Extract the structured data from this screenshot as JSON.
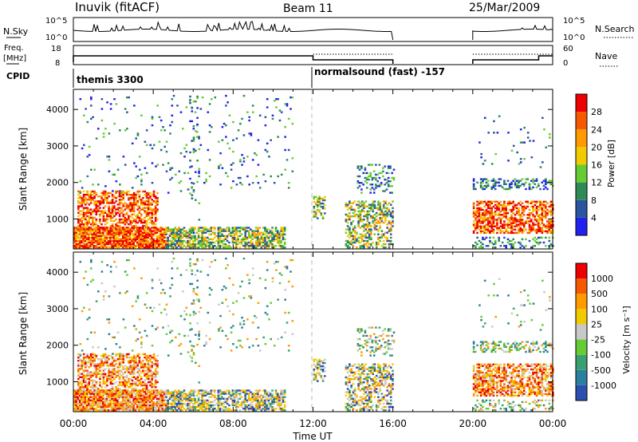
{
  "header": {
    "station": "Inuvik (fitACF)",
    "beam": "Beam 11",
    "date": "25/Mar/2009"
  },
  "panels": {
    "nsky": {
      "label": "N.Sky",
      "right_label": "N.Search",
      "left_ticks": [
        "10^5",
        "10^0"
      ],
      "right_ticks": [
        "10^5",
        "10^0"
      ]
    },
    "freq": {
      "label_line1": "Freq.",
      "label_line2": "[MHz]",
      "right_label": "Nave",
      "left_ticks": [
        "18",
        "8"
      ],
      "right_ticks": [
        "60",
        "0"
      ]
    },
    "cpid": {
      "label": "CPID",
      "segments": [
        "themis 3300",
        "normalsound (fast) -157"
      ]
    }
  },
  "chart_data": [
    {
      "type": "heatmap",
      "name": "power",
      "ylabel": "Slant Range [km]",
      "xlabel": "Time UT",
      "xlim": [
        "00:00",
        "24:00"
      ],
      "ylim": [
        180,
        4550
      ],
      "x_ticks": [
        "00:00",
        "04:00",
        "08:00",
        "12:00",
        "16:00",
        "20:00",
        "00:00"
      ],
      "y_ticks": [
        1000,
        2000,
        3000,
        4000
      ],
      "colorbar": {
        "label": "Power [dB]",
        "ticks": [
          "4",
          "8",
          "12",
          "16",
          "20",
          "24",
          "28"
        ],
        "colors": [
          "#2222ee",
          "#2a55a0",
          "#2e8b57",
          "#66cc33",
          "#f2ca00",
          "#ff9a00",
          "#f65a00",
          "#ee0000"
        ]
      },
      "data_gaps_hours": [
        [
          16.0,
          20.0
        ]
      ]
    },
    {
      "type": "heatmap",
      "name": "velocity",
      "ylabel": "Slant Range [km]",
      "xlabel": "Time UT",
      "xlim": [
        "00:00",
        "24:00"
      ],
      "ylim": [
        180,
        4550
      ],
      "x_ticks": [
        "00:00",
        "04:00",
        "08:00",
        "12:00",
        "16:00",
        "20:00",
        "00:00"
      ],
      "y_ticks": [
        1000,
        2000,
        3000,
        4000
      ],
      "colorbar": {
        "label": "Velocity [m s⁻¹]",
        "ticks": [
          "1000",
          "500",
          "100",
          "25",
          "-25",
          "-100",
          "-500",
          "-1000"
        ],
        "colors": [
          "#2c4fb0",
          "#2b7f9f",
          "#3aa070",
          "#66cc33",
          "#c8c8c8",
          "#f2ca00",
          "#ff9a00",
          "#f65a00",
          "#ee0000"
        ]
      },
      "data_gaps_hours": [
        [
          16.0,
          20.0
        ]
      ]
    }
  ],
  "xlabel": "Time UT"
}
